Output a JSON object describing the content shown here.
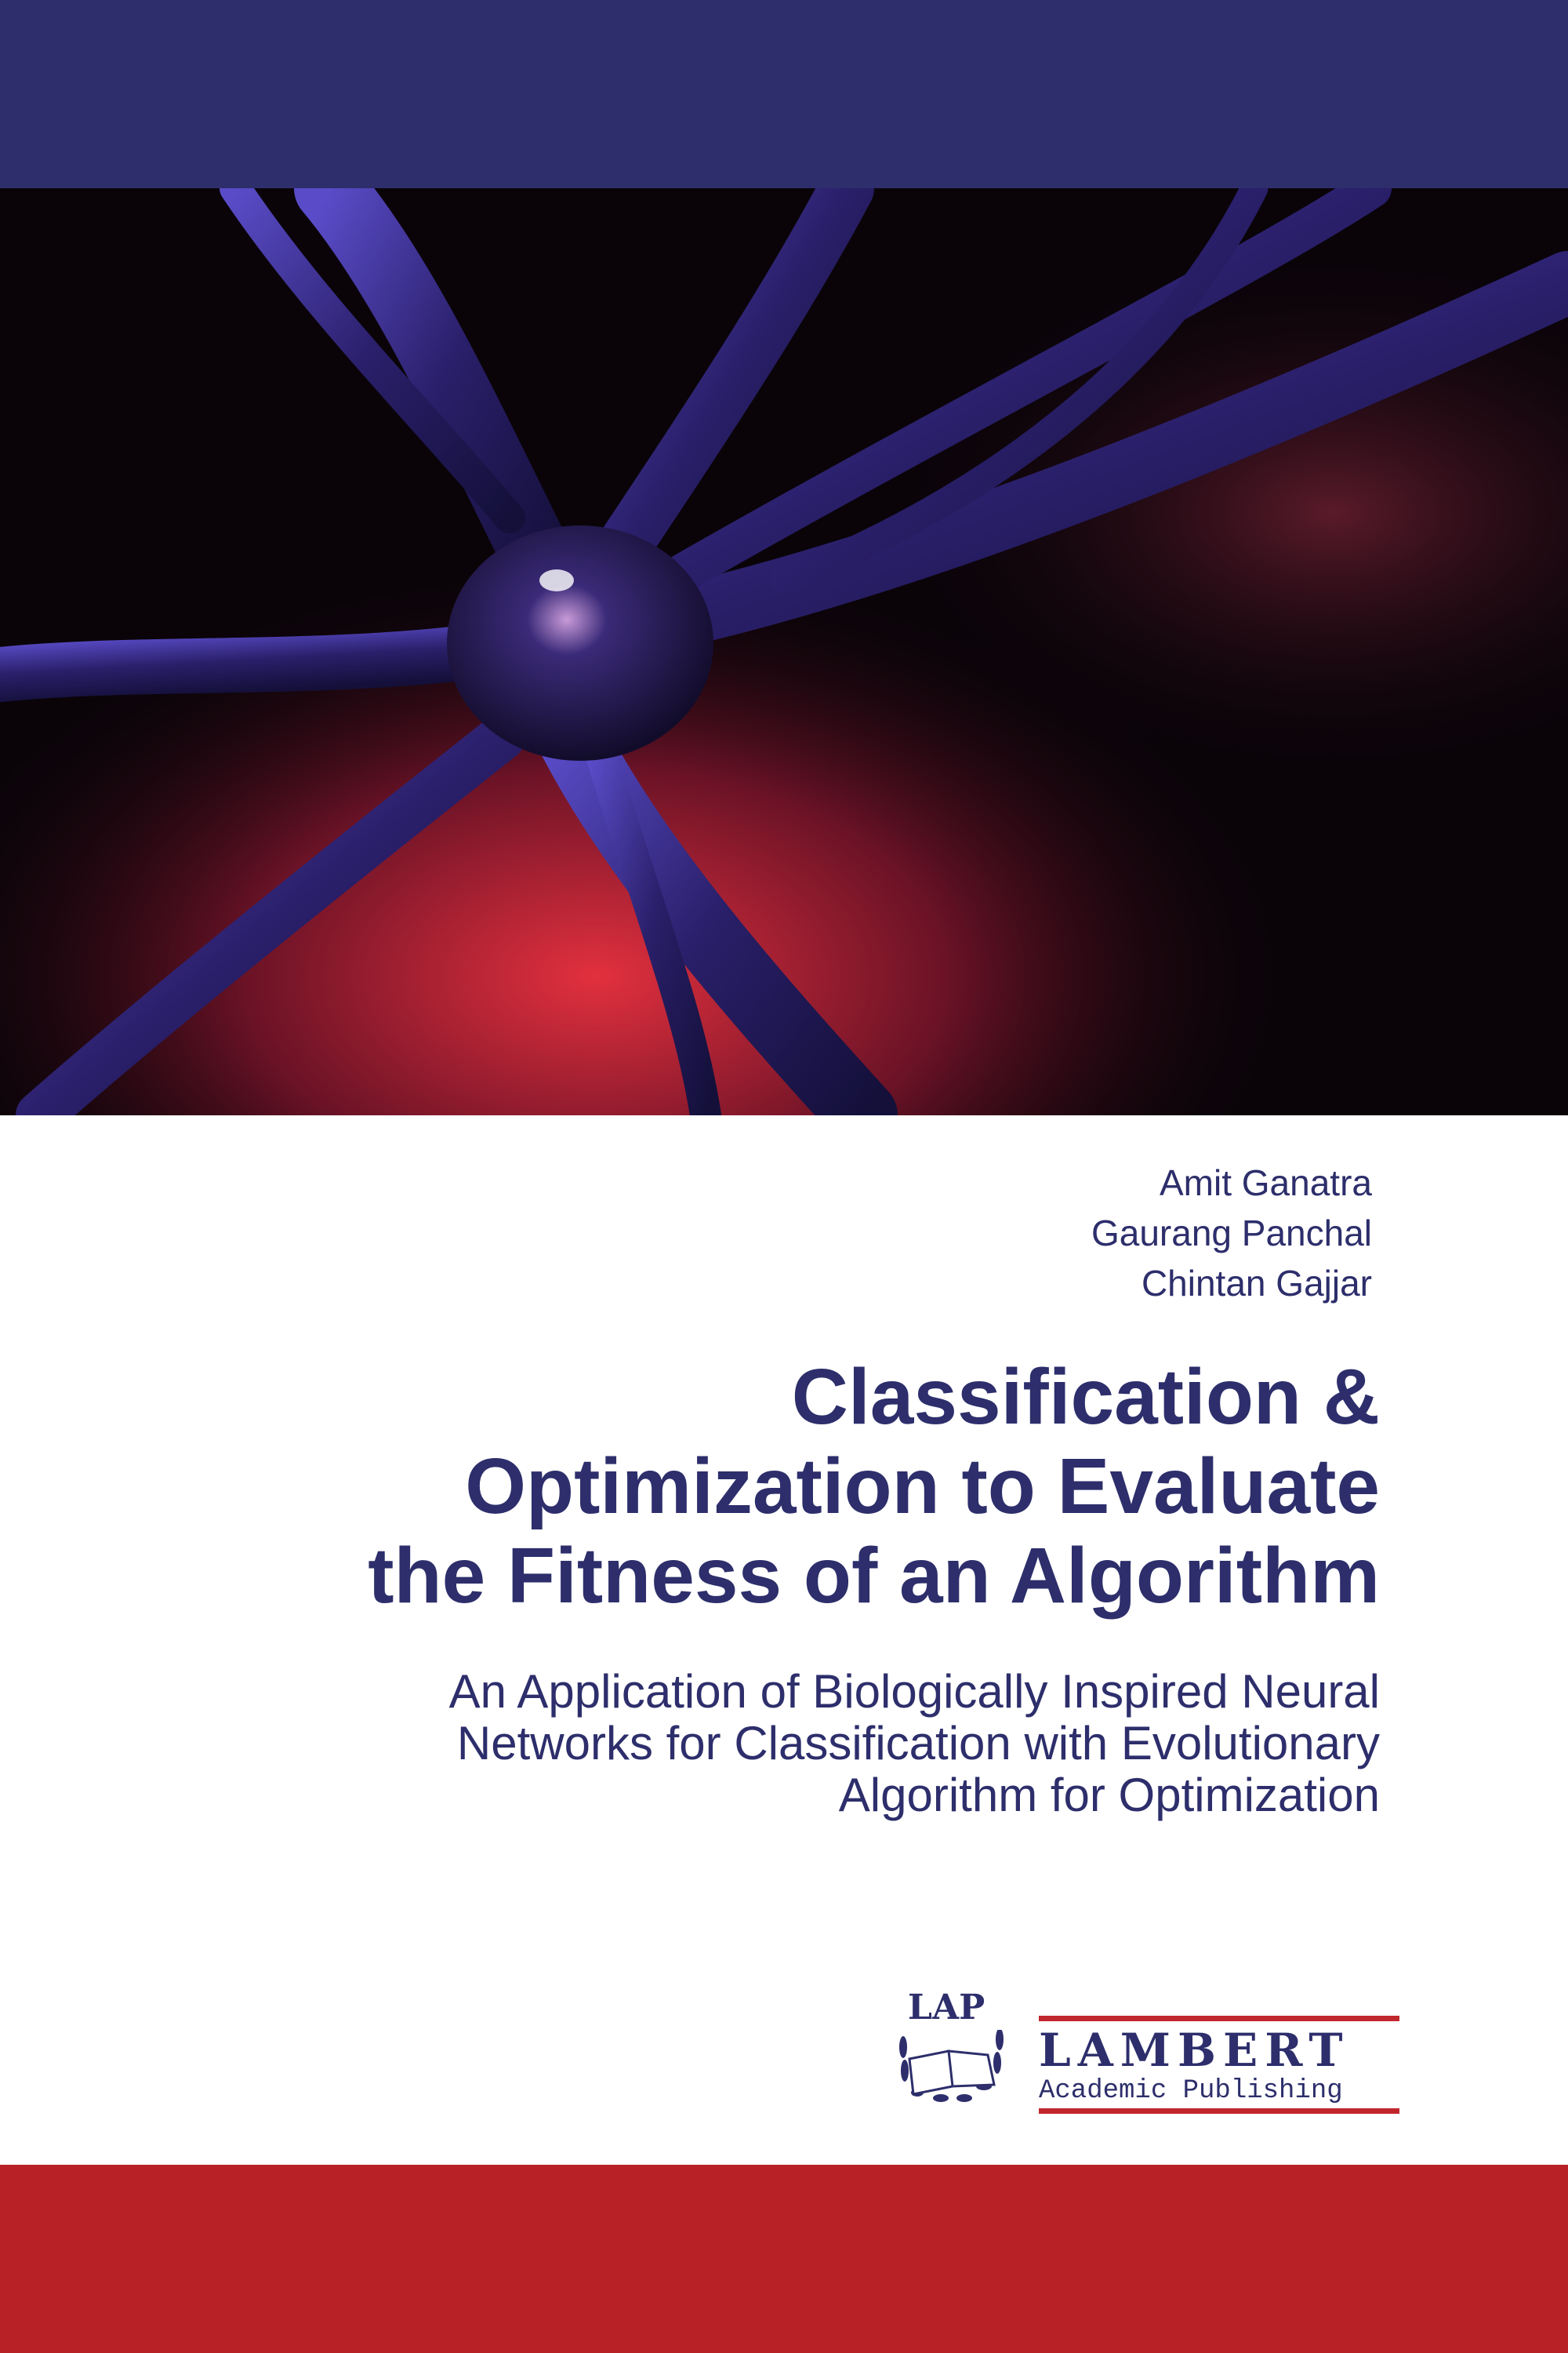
{
  "cover": {
    "authors": [
      "Amit Ganatra",
      "Gaurang Panchal",
      "Chintan Gajjar"
    ],
    "title_lines": [
      "Classification &",
      "Optimization to Evaluate",
      "the Fitness of an Algorithm"
    ],
    "subtitle_lines": [
      "An Application of Biologically Inspired Neural",
      "Networks for Classification with Evolutionary",
      "Algorithm for Optimization"
    ],
    "cover_image": "neuron-illustration"
  },
  "publisher": {
    "logo_monogram": "LAP",
    "name": "LAMBERT",
    "tagline": "Academic Publishing"
  },
  "colors": {
    "navy": "#2d2e6b",
    "red": "#b82226",
    "logo_red": "#c0262c"
  }
}
